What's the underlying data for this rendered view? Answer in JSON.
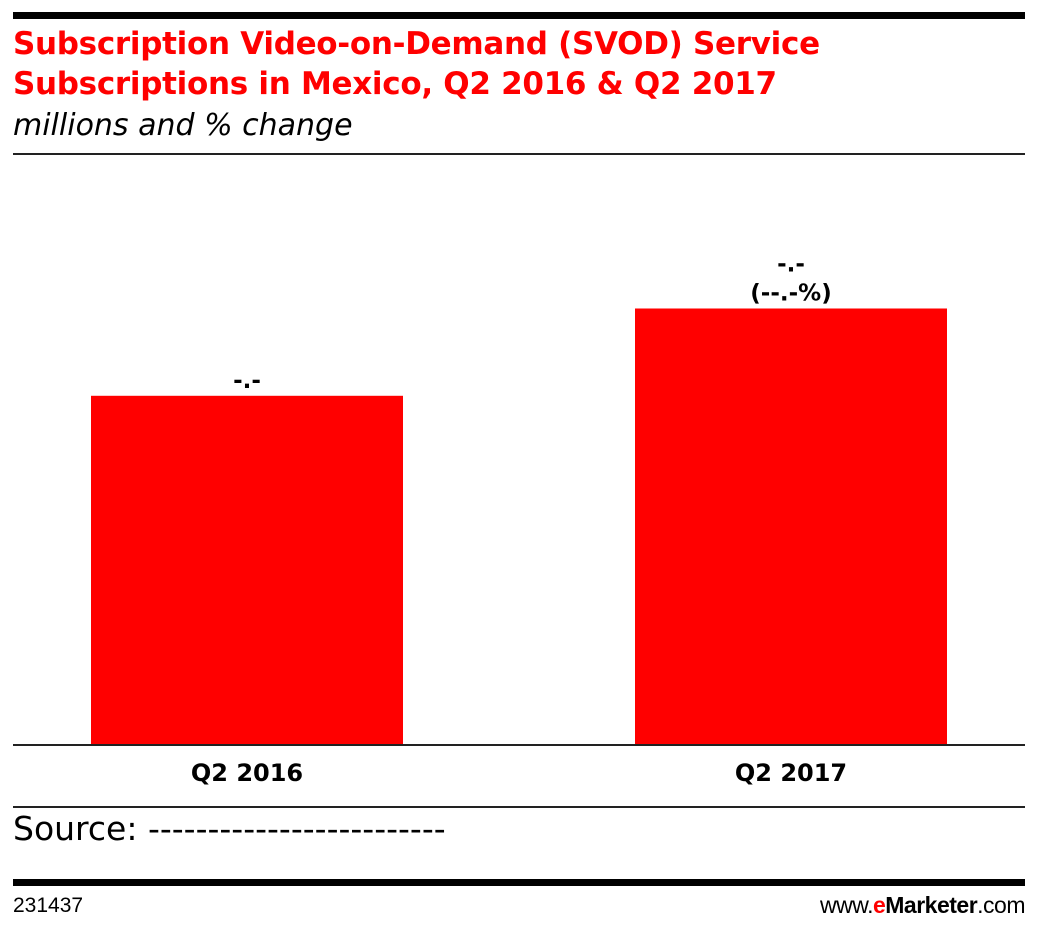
{
  "header": {
    "title": "Subscription Video-on-Demand (SVOD) Service Subscriptions in Mexico, Q2 2016 & Q2 2017",
    "subtitle": "millions and % change"
  },
  "chart_data": {
    "type": "bar",
    "title": "Subscription Video-on-Demand (SVOD) Service Subscriptions in Mexico, Q2 2016 & Q2 2017",
    "subtitle": "millions and % change",
    "categories": [
      "Q2 2016",
      "Q2 2017"
    ],
    "values": [
      0.8,
      1.0
    ],
    "data_labels": [
      "-.-",
      "-.-"
    ],
    "change_labels": [
      "",
      "(--.-%)"
    ],
    "ylim": [
      0,
      1.26
    ],
    "grid": false,
    "bar_color": "#ff0000"
  },
  "footer": {
    "source": "Source: -------------------------",
    "chart_id": "231437",
    "brand_prefix": "www.",
    "brand_e": "e",
    "brand_name": "Marketer",
    "brand_suffix": ".com"
  }
}
